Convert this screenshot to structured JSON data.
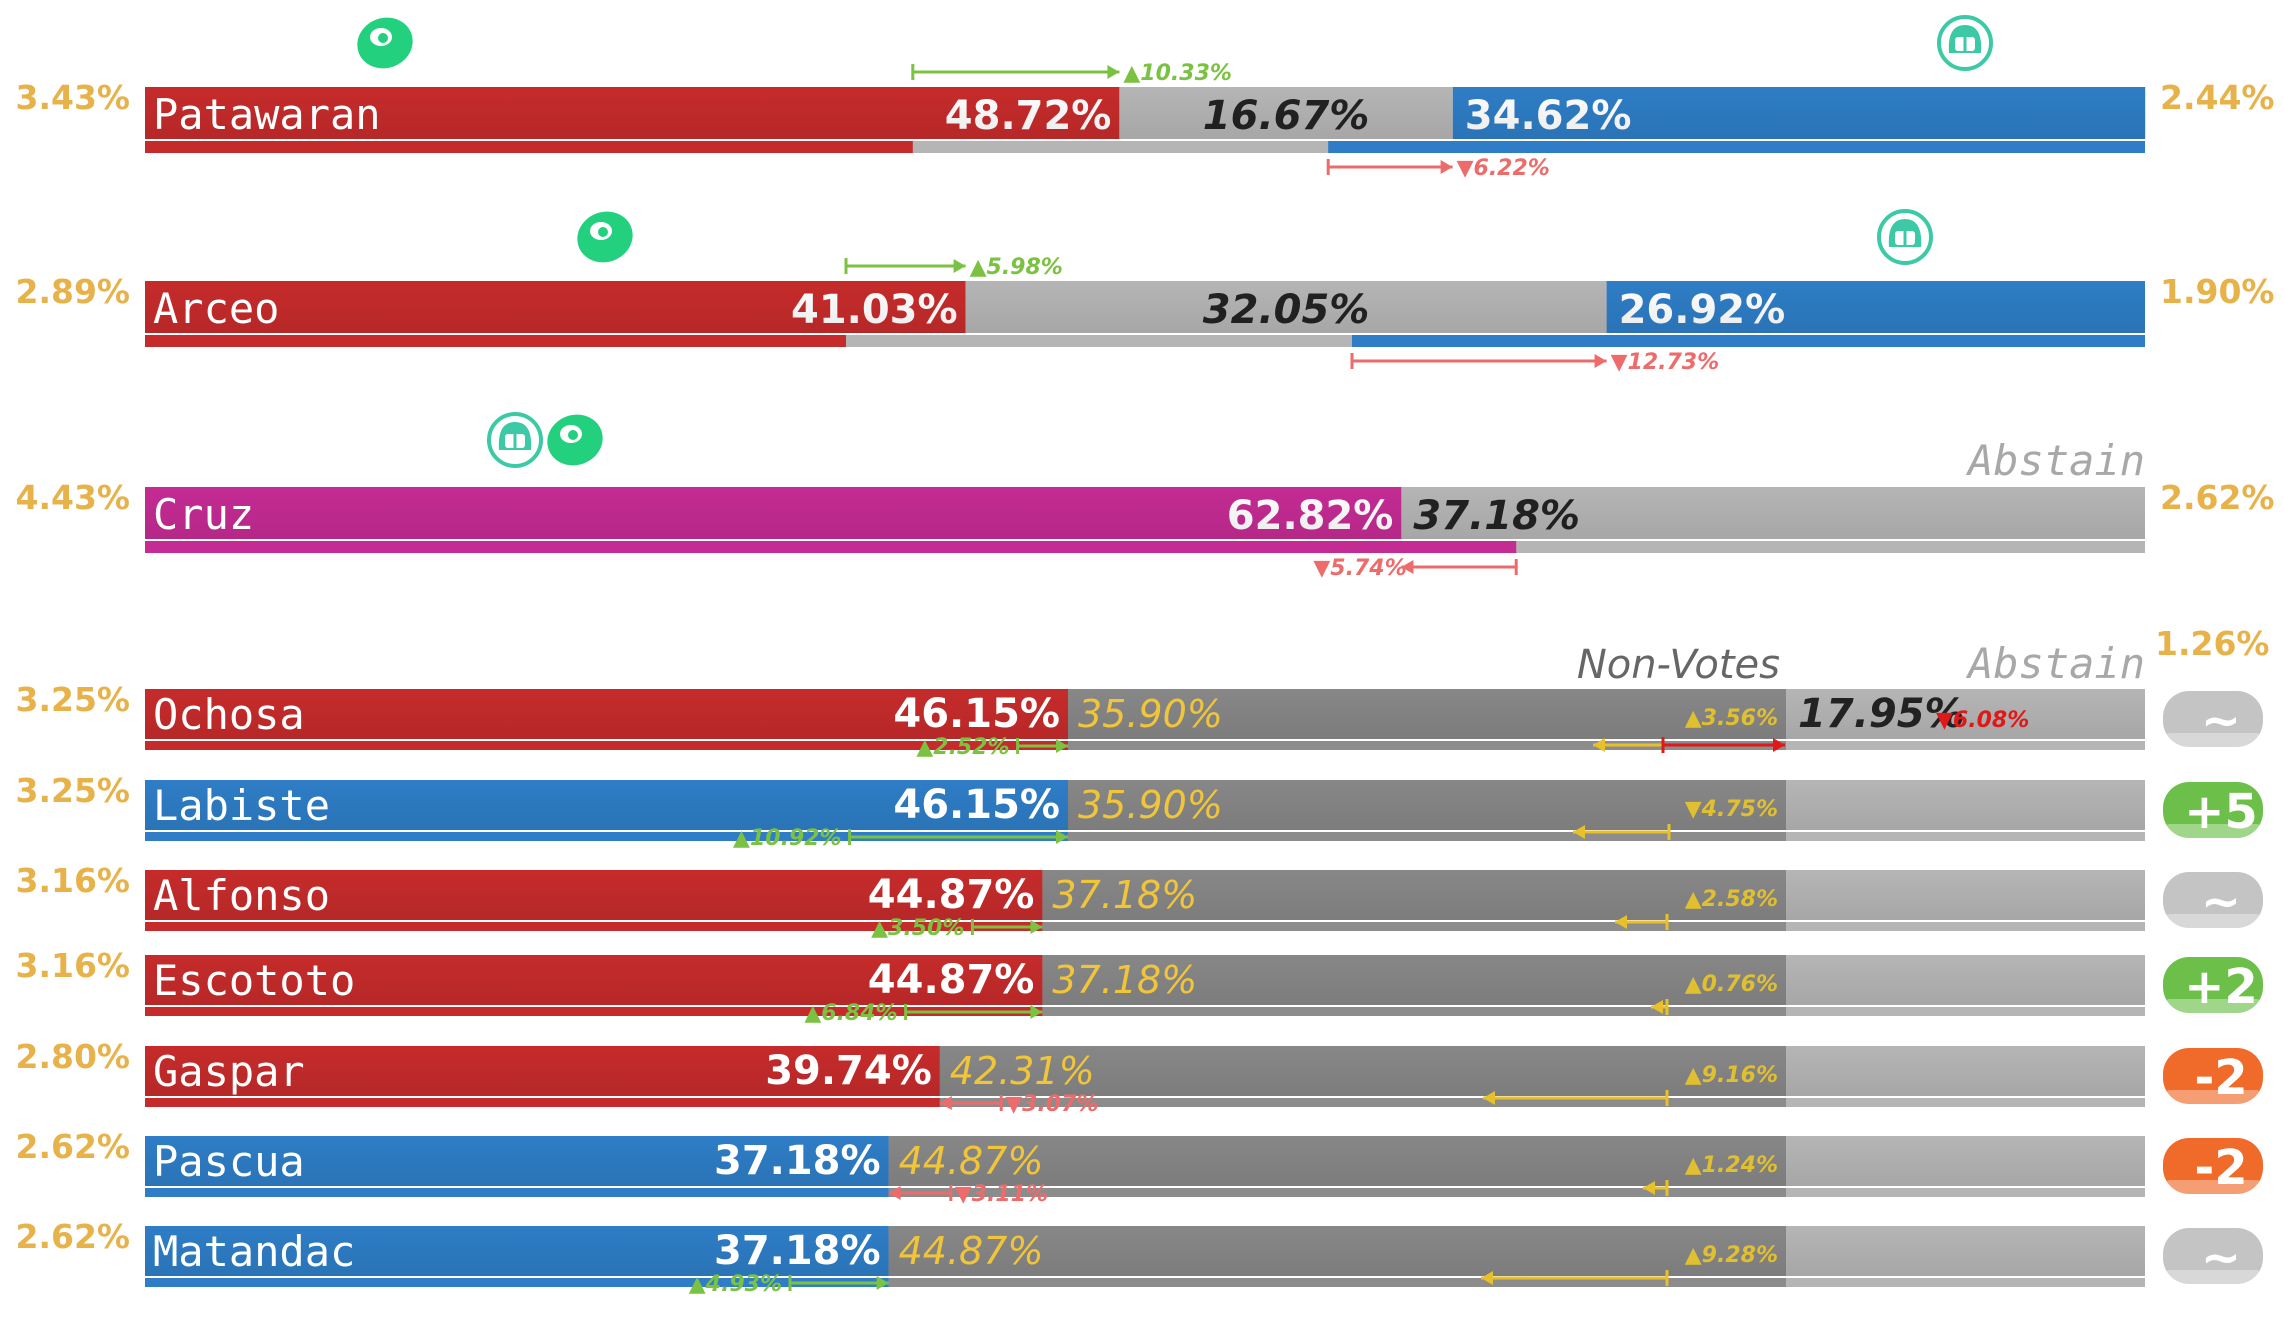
{
  "chart_data": [
    {
      "type": "bar",
      "section": "officer",
      "rows": [
        {
          "name": "Patawaran",
          "color": "#c62b2b",
          "left_pct": "3.43%",
          "right_pct": "2.44%",
          "segments": [
            {
              "value": 48.72,
              "label": "48.72%",
              "color": "#c62b2b",
              "style": "white"
            },
            {
              "value": 16.67,
              "label": "16.67%",
              "color": "#b5b5b5",
              "style": "dark"
            },
            {
              "value": 34.62,
              "label": "34.62%",
              "color": "#2e7dc6",
              "style": "white"
            }
          ],
          "deltas": [
            {
              "dir": "up",
              "label": "▲10.33%",
              "from": 38.39,
              "to": 48.72,
              "pos": "above"
            },
            {
              "dir": "down",
              "label": "▼6.22%",
              "from": 59.16,
              "to": 65.38,
              "pos": "below"
            }
          ],
          "icons": [
            {
              "name": "bean-icon",
              "at": 12
            },
            {
              "name": "mask-icon",
              "at": 91
            }
          ]
        },
        {
          "name": "Arceo",
          "color": "#c62b2b",
          "left_pct": "2.89%",
          "right_pct": "1.90%",
          "segments": [
            {
              "value": 41.03,
              "label": "41.03%",
              "color": "#c62b2b",
              "style": "white"
            },
            {
              "value": 32.05,
              "label": "32.05%",
              "color": "#b5b5b5",
              "style": "dark"
            },
            {
              "value": 26.92,
              "label": "26.92%",
              "color": "#2e7dc6",
              "style": "white"
            }
          ],
          "deltas": [
            {
              "dir": "up",
              "label": "▲5.98%",
              "from": 35.05,
              "to": 41.03,
              "pos": "above"
            },
            {
              "dir": "down",
              "label": "▼12.73%",
              "from": 60.35,
              "to": 73.08,
              "pos": "below"
            }
          ],
          "icons": [
            {
              "name": "bean-icon",
              "at": 23
            },
            {
              "name": "mask-icon",
              "at": 88
            }
          ]
        },
        {
          "name": "Cruz",
          "color": "#c42b93",
          "left_pct": "4.43%",
          "right_pct": "2.62%",
          "header": "Abstain",
          "segments": [
            {
              "value": 62.82,
              "label": "62.82%",
              "color": "#c42b93",
              "style": "white"
            },
            {
              "value": 37.18,
              "label": "37.18%",
              "color": "#b5b5b5",
              "style": "dark"
            }
          ],
          "deltas": [
            {
              "dir": "down",
              "label": "▼5.74%",
              "from": 62.82,
              "to": 68.56,
              "pos": "below"
            }
          ],
          "icons": [
            {
              "name": "mask-icon",
              "at": 18.5
            },
            {
              "name": "bean-icon",
              "at": 21.5
            }
          ]
        }
      ]
    },
    {
      "type": "bar",
      "section": "council",
      "headers": {
        "non_votes": "Non-Votes",
        "abstain": "Abstain",
        "abstain_pct": "1.26%"
      },
      "rows": [
        {
          "name": "Ochosa",
          "color": "#c62b2b",
          "left_pct": "3.25%",
          "yes": 46.15,
          "yes_label": "46.15%",
          "nv": 35.9,
          "nv_label": "35.90%",
          "ab": 17.95,
          "ab_label": "17.95%",
          "ab_delta": "▼6.08%",
          "yes_delta": {
            "dir": "up",
            "label": "▲2.52%",
            "from": 43.63,
            "to": 46.15
          },
          "nv_delta": {
            "label": "▲3.56%",
            "from": 75.9,
            "to": 79.5
          },
          "badge": {
            "text": "~",
            "color": "#c4c4c4"
          }
        },
        {
          "name": "Labiste",
          "color": "#2e7dc6",
          "left_pct": "3.25%",
          "yes": 46.15,
          "yes_label": "46.15%",
          "nv": 35.9,
          "nv_label": "35.90%",
          "yes_delta": {
            "dir": "up",
            "label": "▲10.92%",
            "from": 35.23,
            "to": 46.15
          },
          "nv_delta": {
            "label": "▼4.75%",
            "from": 71.4,
            "to": 76.2
          },
          "badge": {
            "text": "+5",
            "color": "#6cc04a"
          }
        },
        {
          "name": "Alfonso",
          "color": "#c62b2b",
          "left_pct": "3.16%",
          "yes": 44.87,
          "yes_label": "44.87%",
          "nv": 37.18,
          "nv_label": "37.18%",
          "yes_delta": {
            "dir": "up",
            "label": "▲3.50%",
            "from": 41.37,
            "to": 44.87
          },
          "nv_delta": {
            "label": "▲2.58%",
            "from": 73.5,
            "to": 76.1
          },
          "badge": {
            "text": "~",
            "color": "#c4c4c4"
          }
        },
        {
          "name": "Escototo",
          "color": "#c62b2b",
          "left_pct": "3.16%",
          "yes": 44.87,
          "yes_label": "44.87%",
          "nv": 37.18,
          "nv_label": "37.18%",
          "yes_delta": {
            "dir": "up",
            "label": "▲6.84%",
            "from": 38.03,
            "to": 44.87
          },
          "nv_delta": {
            "label": "▲0.76%",
            "from": 75.3,
            "to": 76.1
          },
          "badge": {
            "text": "+2",
            "color": "#6cc04a"
          }
        },
        {
          "name": "Gaspar",
          "color": "#c62b2b",
          "left_pct": "2.80%",
          "yes": 39.74,
          "yes_label": "39.74%",
          "nv": 42.31,
          "nv_label": "42.31%",
          "yes_delta": {
            "dir": "down",
            "label": "▼3.07%",
            "from": 39.74,
            "to": 42.81
          },
          "nv_delta": {
            "label": "▲9.16%",
            "from": 66.9,
            "to": 76.1
          },
          "badge": {
            "text": "-2",
            "color": "#f06a2a"
          }
        },
        {
          "name": "Pascua",
          "color": "#2e7dc6",
          "left_pct": "2.62%",
          "yes": 37.18,
          "yes_label": "37.18%",
          "nv": 44.87,
          "nv_label": "44.87%",
          "yes_delta": {
            "dir": "down",
            "label": "▼3.11%",
            "from": 37.18,
            "to": 40.29
          },
          "nv_delta": {
            "label": "▲1.24%",
            "from": 74.9,
            "to": 76.1
          },
          "badge": {
            "text": "-2",
            "color": "#f06a2a"
          }
        },
        {
          "name": "Matandac",
          "color": "#2e7dc6",
          "left_pct": "2.62%",
          "yes": 37.18,
          "yes_label": "37.18%",
          "nv": 44.87,
          "nv_label": "44.87%",
          "yes_delta": {
            "dir": "up",
            "label": "▲4.93%",
            "from": 32.25,
            "to": 37.18
          },
          "nv_delta": {
            "label": "▲9.28%",
            "from": 66.8,
            "to": 76.1
          },
          "badge": {
            "text": "~",
            "color": "#c4c4c4"
          }
        }
      ]
    }
  ]
}
